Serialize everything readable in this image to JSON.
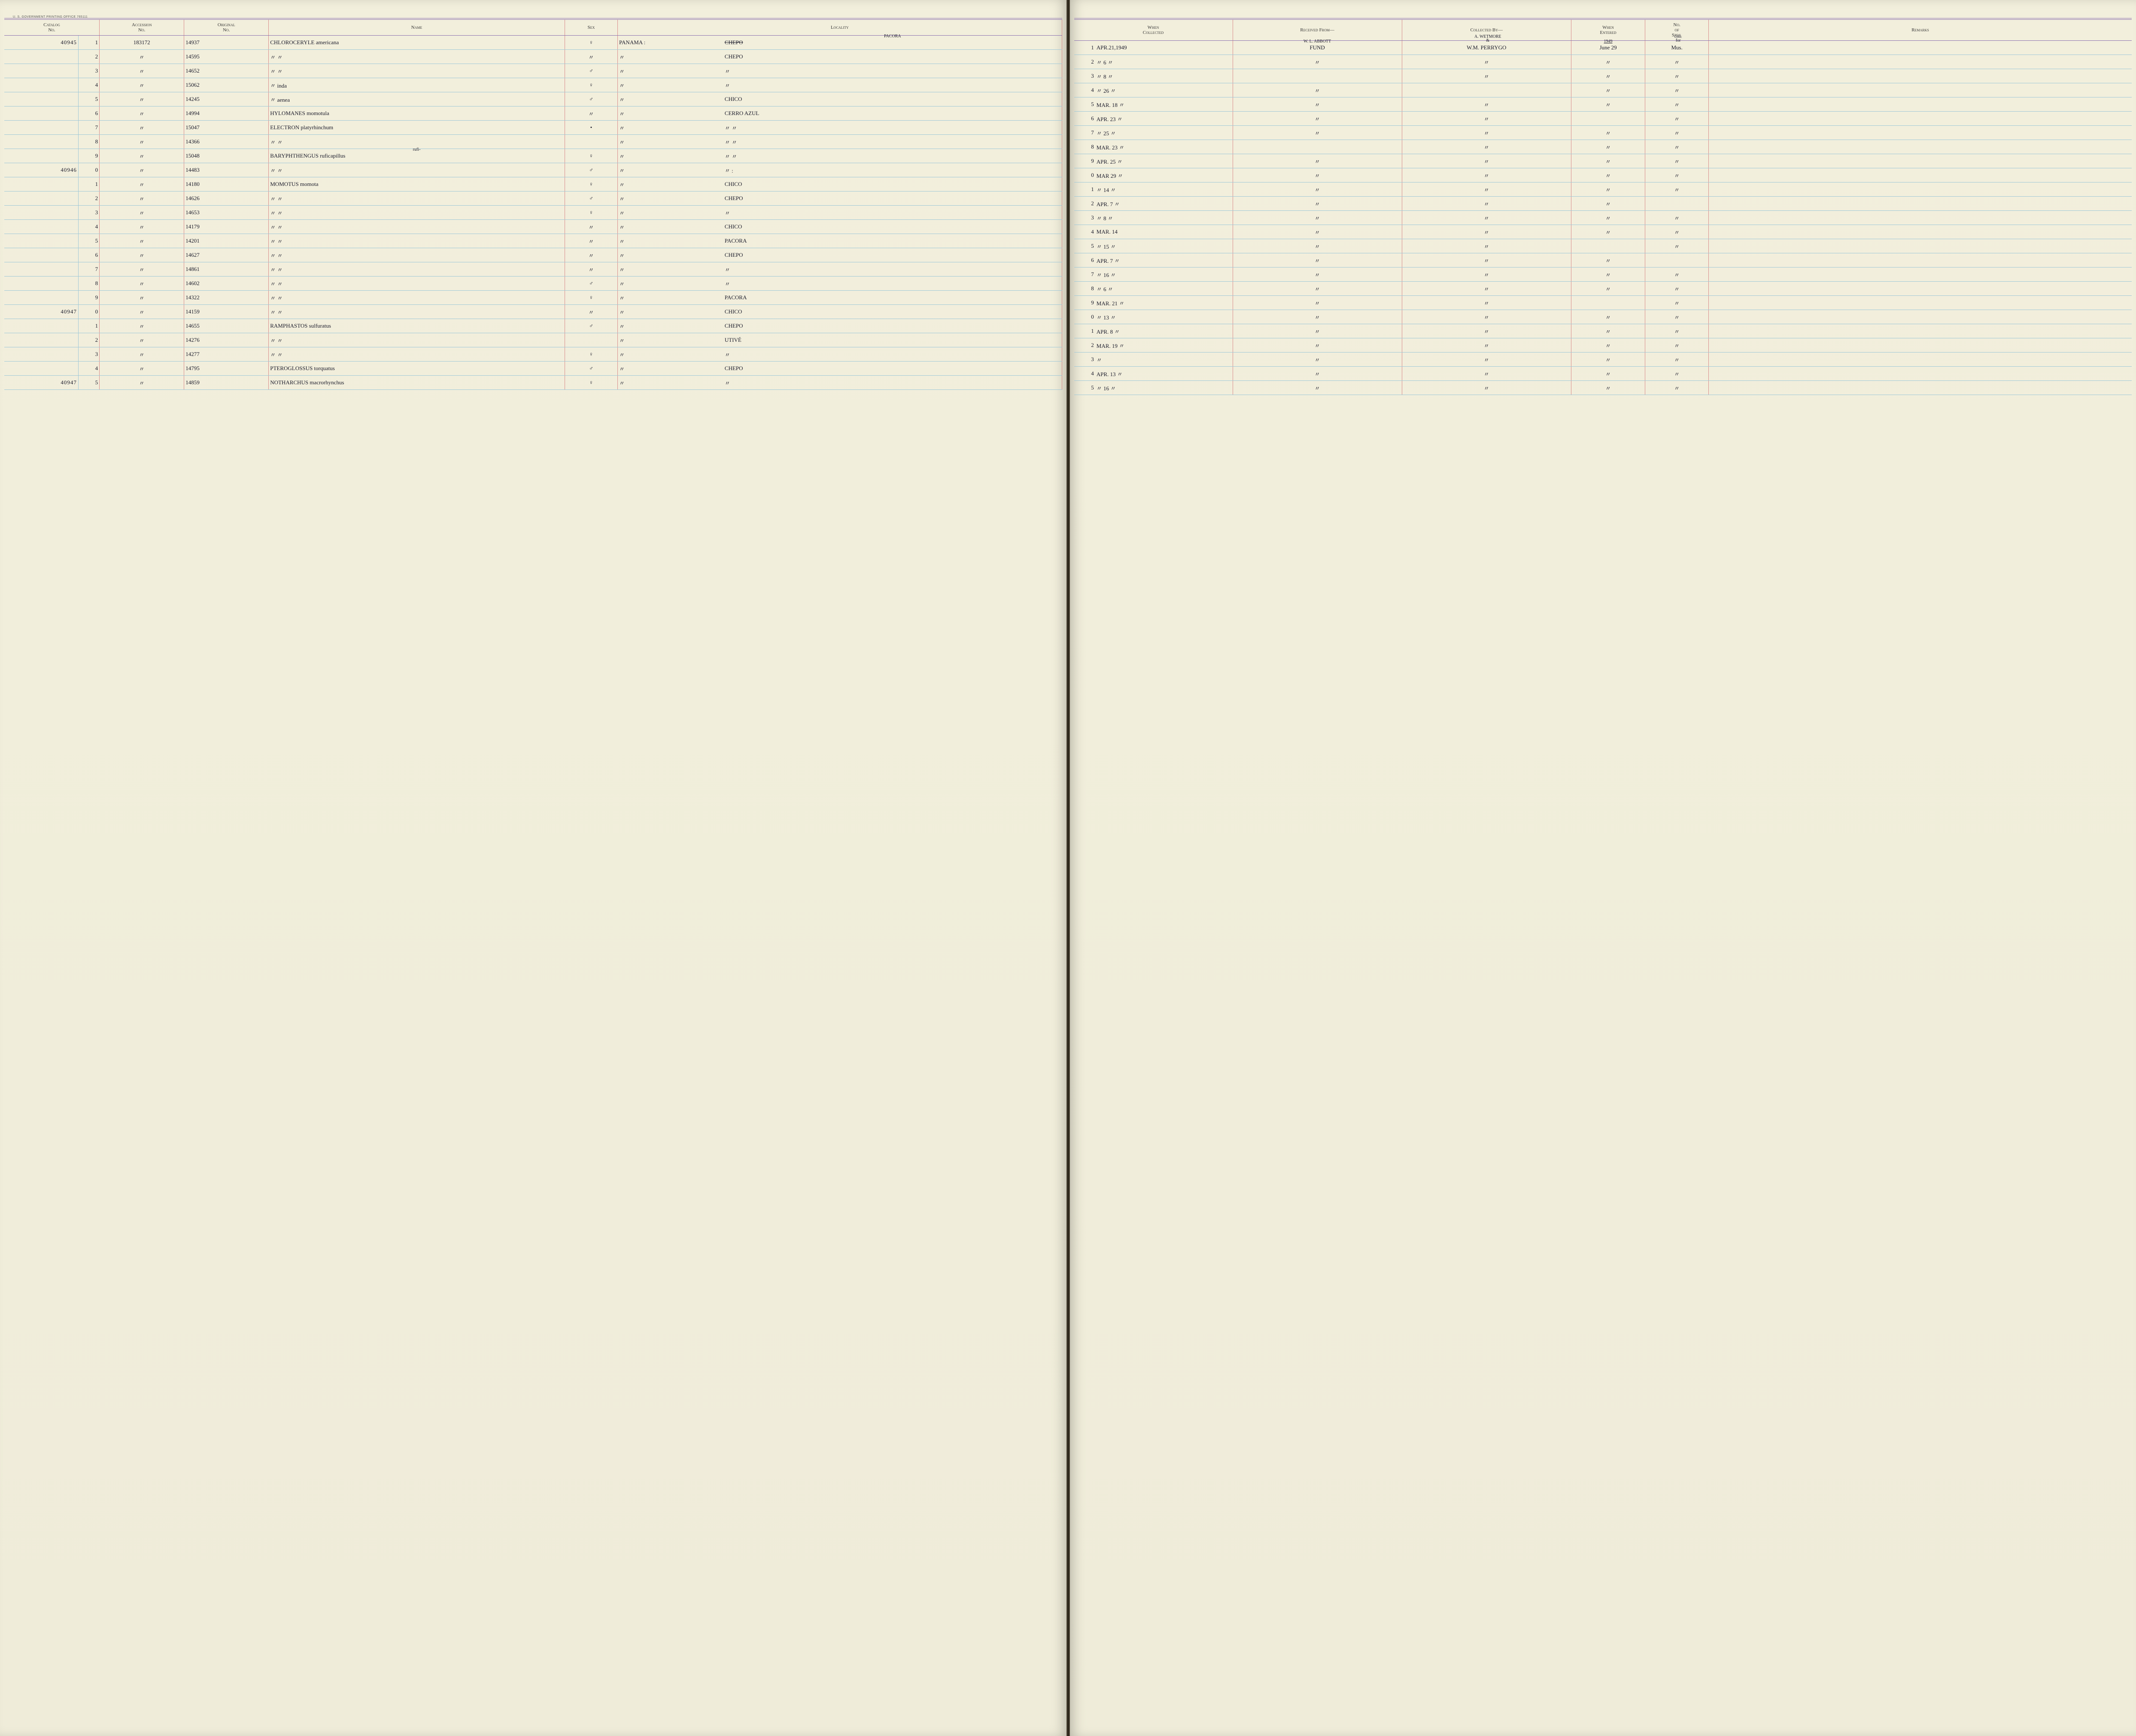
{
  "imprint": "U. S. GOVERNMENT PRINTING OFFICE    765111",
  "headers_left": {
    "catalog": "Catalog\nNo.",
    "accession": "Accession\nNo.",
    "original": "Original\nNo.",
    "name": "Name",
    "sex": "Sex",
    "locality": "Locality"
  },
  "headers_right": {
    "when_collected": "When\nCollected",
    "received_from": "Received From—",
    "collected_by": "Collected By—",
    "when_entered": "When\nEntered",
    "no_spec": "No.\nof\nSpec.",
    "remarks": "Remarks"
  },
  "top_notes": {
    "locality_above": "PACORA",
    "locality_struck": "CHEPO",
    "received_from": "W. L. ABBOTT",
    "collected_by_top": "A. WETMORE",
    "collected_by_amp": "&",
    "when_entered_top": "1949",
    "no_spec_top": "coll.\nfor"
  },
  "rows": [
    {
      "cat": "40945",
      "sub": "1",
      "acc": "183172",
      "orig": "14937",
      "name": "CHLOROCERYLE americana",
      "sex": "♀",
      "loc_prefix": "PANAMA :",
      "loc": "",
      "sub2": "1",
      "when": "APR.21,1949",
      "recv": "FUND",
      "coll": "W.M. PERRYGO",
      "entered": "June 29",
      "spec": "Mus."
    },
    {
      "cat": "",
      "sub": "2",
      "acc": "〃",
      "orig": "14595",
      "name": "〃             〃",
      "sex": "〃",
      "loc_prefix": "〃",
      "loc": "CHEPO",
      "sub2": "2",
      "when": "〃  6  〃",
      "recv": "〃",
      "coll": "〃",
      "entered": "〃",
      "spec": "〃"
    },
    {
      "cat": "",
      "sub": "3",
      "acc": "〃",
      "orig": "14652",
      "name": "〃             〃",
      "sex": "♂",
      "loc_prefix": "〃",
      "loc": "〃",
      "sub2": "3",
      "when": "〃  8  〃",
      "recv": "",
      "coll": "〃",
      "entered": "〃",
      "spec": "〃"
    },
    {
      "cat": "",
      "sub": "4",
      "acc": "〃",
      "orig": "15062",
      "name": "〃     inda",
      "sex": "♀",
      "loc_prefix": "〃",
      "loc": "〃",
      "sub2": "4",
      "when": "〃 26  〃",
      "recv": "〃",
      "coll": "",
      "entered": "〃",
      "spec": "〃"
    },
    {
      "cat": "",
      "sub": "5",
      "acc": "〃",
      "orig": "14245",
      "name": "〃    aenea",
      "sex": "♂",
      "loc_prefix": "〃",
      "loc": "CHICO",
      "sub2": "5",
      "when": "MAR. 18 〃",
      "recv": "〃",
      "coll": "〃",
      "entered": "〃",
      "spec": "〃"
    },
    {
      "cat": "",
      "sub": "6",
      "acc": "〃",
      "orig": "14994",
      "name": "HYLOMANES momotula",
      "sex": "〃",
      "loc_prefix": "〃",
      "loc": "CERRO AZUL",
      "sub2": "6",
      "when": "APR. 23 〃",
      "recv": "〃",
      "coll": "〃",
      "entered": "",
      "spec": "〃"
    },
    {
      "cat": "",
      "sub": "7",
      "acc": "〃",
      "orig": "15047",
      "name": "ELECTRON platyrhinchum",
      "sex": "•",
      "loc_prefix": "〃",
      "loc": "〃      〃",
      "sub2": "7",
      "when": "〃 25  〃",
      "recv": "〃",
      "coll": "〃",
      "entered": "〃",
      "spec": "〃"
    },
    {
      "cat": "",
      "sub": "8",
      "acc": "〃",
      "orig": "14366",
      "name": "〃             〃",
      "sex": "",
      "loc_prefix": "〃",
      "loc": "〃      〃",
      "sub2": "8",
      "when": "MAR. 23 〃",
      "recv": "",
      "coll": "〃",
      "entered": "〃",
      "spec": "〃"
    },
    {
      "cat": "",
      "sub": "9",
      "acc": "〃",
      "orig": "15048",
      "name": "BARYPHTHENGUS ruficapillus",
      "name_above": "rufi-",
      "sex": "♀",
      "loc_prefix": "〃",
      "loc": "〃      〃",
      "sub2": "9",
      "when": "APR. 25 〃",
      "recv": "〃",
      "coll": "〃",
      "entered": "〃",
      "spec": "〃"
    },
    {
      "cat": "40946",
      "sub": "0",
      "acc": "〃",
      "orig": "14483",
      "name": "〃             〃",
      "sex": "♂",
      "loc_prefix": "〃",
      "loc": "〃    :",
      "sub2": "0",
      "when": "MAR 29 〃",
      "recv": "〃",
      "coll": "〃",
      "entered": "〃",
      "spec": "〃"
    },
    {
      "cat": "",
      "sub": "1",
      "acc": "〃",
      "orig": "14180",
      "name": "MOMOTUS momota",
      "sex": "♀",
      "loc_prefix": "〃",
      "loc": "CHICO",
      "sub2": "1",
      "when": "〃 14 〃",
      "recv": "〃",
      "coll": "〃",
      "entered": "〃",
      "spec": "〃"
    },
    {
      "cat": "",
      "sub": "2",
      "acc": "〃",
      "orig": "14626",
      "name": "〃             〃",
      "sex": "♂",
      "loc_prefix": "〃",
      "loc": "CHEPO",
      "sub2": "2",
      "when": "APR. 7 〃",
      "recv": "〃",
      "coll": "〃",
      "entered": "〃",
      "spec": ""
    },
    {
      "cat": "",
      "sub": "3",
      "acc": "〃",
      "orig": "14653",
      "name": "〃             〃",
      "sex": "♀",
      "loc_prefix": "〃",
      "loc": "〃",
      "sub2": "3",
      "when": "〃  8  〃",
      "recv": "〃",
      "coll": "〃",
      "entered": "〃",
      "spec": "〃"
    },
    {
      "cat": "",
      "sub": "4",
      "acc": "〃",
      "orig": "14179",
      "name": "〃             〃",
      "sex": "〃",
      "loc_prefix": "〃",
      "loc": "CHICO",
      "sub2": "4",
      "when": "MAR. 14",
      "recv": "〃",
      "coll": "〃",
      "entered": "〃",
      "spec": "〃"
    },
    {
      "cat": "",
      "sub": "5",
      "acc": "〃",
      "orig": "14201",
      "name": "〃             〃",
      "sex": "〃",
      "loc_prefix": "〃",
      "loc": "PACORA",
      "sub2": "5",
      "when": "〃 15 〃",
      "recv": "〃",
      "coll": "〃",
      "entered": "",
      "spec": "〃"
    },
    {
      "cat": "",
      "sub": "6",
      "acc": "〃",
      "orig": "14627",
      "name": "〃             〃",
      "sex": "〃",
      "loc_prefix": "〃",
      "loc": "CHEPO",
      "sub2": "6",
      "when": "APR. 7 〃",
      "recv": "〃",
      "coll": "〃",
      "entered": "〃",
      "spec": ""
    },
    {
      "cat": "",
      "sub": "7",
      "acc": "〃",
      "orig": "14861",
      "name": "〃             〃",
      "sex": "〃",
      "loc_prefix": "〃",
      "loc": "〃",
      "sub2": "7",
      "when": "〃 16 〃",
      "recv": "〃",
      "coll": "〃",
      "entered": "〃",
      "spec": "〃"
    },
    {
      "cat": "",
      "sub": "8",
      "acc": "〃",
      "orig": "14602",
      "name": "〃             〃",
      "sex": "♂",
      "loc_prefix": "〃",
      "loc": "〃",
      "sub2": "8",
      "when": "〃  6  〃",
      "recv": "〃",
      "coll": "〃",
      "entered": "〃",
      "spec": "〃"
    },
    {
      "cat": "",
      "sub": "9",
      "acc": "〃",
      "orig": "14322",
      "name": "〃             〃",
      "sex": "♀",
      "loc_prefix": "〃",
      "loc": "PACORA",
      "sub2": "9",
      "when": "MAR. 21 〃",
      "recv": "〃",
      "coll": "〃",
      "entered": "",
      "spec": "〃"
    },
    {
      "cat": "40947",
      "sub": "0",
      "acc": "〃",
      "orig": "14159",
      "name": "〃             〃",
      "sex": "〃",
      "loc_prefix": "〃",
      "loc": "CHICO",
      "sub2": "0",
      "when": "〃 13 〃",
      "recv": "〃",
      "coll": "〃",
      "entered": "〃",
      "spec": "〃"
    },
    {
      "cat": "",
      "sub": "1",
      "acc": "〃",
      "orig": "14655",
      "name": "RAMPHASTOS sulfuratus",
      "sex": "♂",
      "loc_prefix": "〃",
      "loc": "CHEPO",
      "sub2": "1",
      "when": "APR. 8 〃",
      "recv": "〃",
      "coll": "〃",
      "entered": "〃",
      "spec": "〃"
    },
    {
      "cat": "",
      "sub": "2",
      "acc": "〃",
      "orig": "14276",
      "name": "〃             〃",
      "sex": "",
      "loc_prefix": "〃",
      "loc": "UTIVÉ",
      "sub2": "2",
      "when": "MAR. 19 〃",
      "recv": "〃",
      "coll": "〃",
      "entered": "〃",
      "spec": "〃"
    },
    {
      "cat": "",
      "sub": "3",
      "acc": "〃",
      "orig": "14277",
      "name": "〃             〃",
      "sex": "♀",
      "loc_prefix": "〃",
      "loc": "〃",
      "sub2": "3",
      "when": "〃",
      "recv": "〃",
      "coll": "〃",
      "entered": "〃",
      "spec": "〃"
    },
    {
      "cat": "",
      "sub": "4",
      "acc": "〃",
      "orig": "14795",
      "name": "PTEROGLOSSUS torquatus",
      "sex": "♂",
      "loc_prefix": "〃",
      "loc": "CHEPO",
      "sub2": "4",
      "when": "APR. 13 〃",
      "recv": "〃",
      "coll": "〃",
      "entered": "〃",
      "spec": "〃"
    },
    {
      "cat": "40947",
      "sub": "5",
      "acc": "〃",
      "orig": "14859",
      "name": "NOTHARCHUS macrorhynchus",
      "sex": "♀",
      "loc_prefix": "〃",
      "loc": "〃",
      "sub2": "5",
      "when": "〃 16 〃",
      "recv": "〃",
      "coll": "〃",
      "entered": "〃",
      "spec": "〃"
    }
  ],
  "colors": {
    "paper": "#efecd9",
    "rule_h": "#9fc8d8",
    "rule_v_red": "#d98b8b",
    "rule_purple": "#8a6fb0",
    "ink": "#1a1a2a"
  },
  "col_widths_left": {
    "cat": "7%",
    "sub": "2%",
    "acc": "8%",
    "orig": "8%",
    "name": "28%",
    "sex": "5%",
    "loc": "42%"
  },
  "col_widths_right": {
    "sub": "2%",
    "when": "13%",
    "recv": "16%",
    "coll": "16%",
    "entered": "7%",
    "spec": "6%",
    "remarks": "40%"
  }
}
